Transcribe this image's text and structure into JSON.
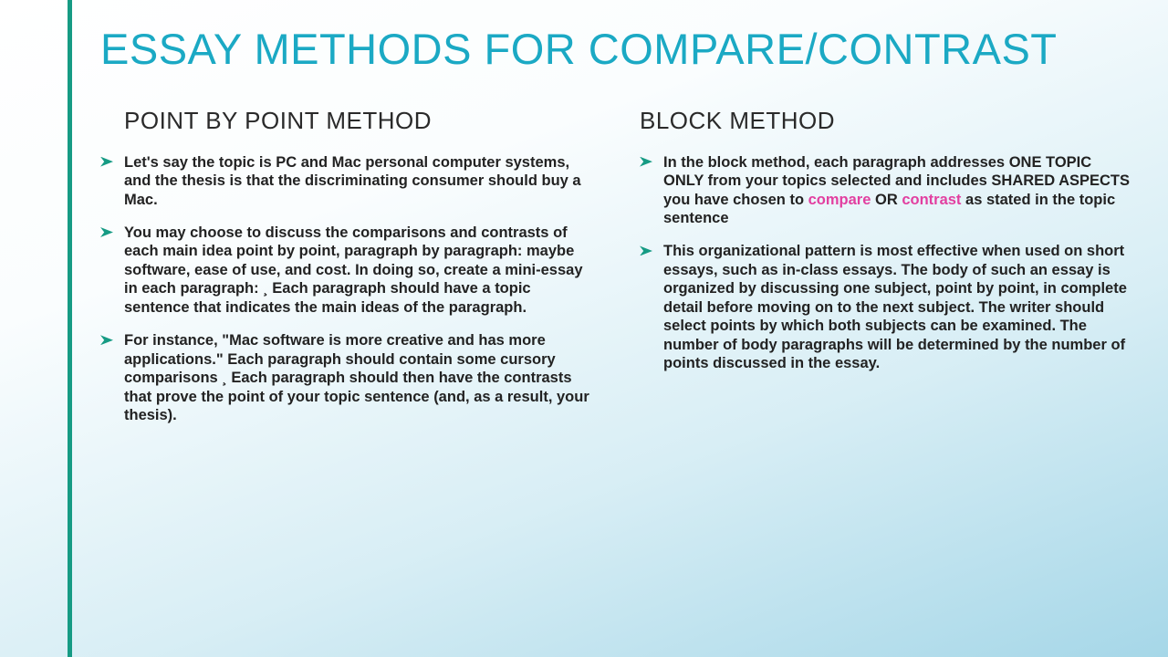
{
  "colors": {
    "accent_bar": "#169b84",
    "title": "#1ba9c4",
    "highlight": "#e23fa0",
    "body_text": "#222222",
    "bg_gradient": [
      "#ffffff",
      "#fafdfe",
      "#d8eef5",
      "#a6d7e8"
    ]
  },
  "typography": {
    "title_size_pt": 36,
    "heading_size_pt": 20,
    "body_size_pt": 12.5,
    "family": "Century Gothic"
  },
  "title": "ESSAY METHODS FOR COMPARE/CONTRAST",
  "left": {
    "heading": "POINT BY POINT METHOD",
    "bullets": [
      "Let's say the topic is PC and Mac personal computer systems, and the thesis is that the discriminating consumer should buy a Mac.",
      "You may choose to discuss the comparisons and contrasts of each main idea point by point, paragraph by paragraph: maybe software, ease of use, and cost. In doing so, create a mini-essay in each paragraph: ¸ Each paragraph should have a topic sentence that indicates the main ideas of the paragraph.",
      "For instance, \"Mac software is more creative and has more applications.\" Each paragraph should contain some cursory comparisons ¸ Each paragraph should then have the contrasts that prove the point of your topic sentence (and, as a result, your thesis)."
    ]
  },
  "right": {
    "heading": "BLOCK METHOD",
    "bullet1_pre": "In the block method, each paragraph addresses ONE TOPIC ONLY from your topics selected and includes SHARED ASPECTS you have chosen to ",
    "bullet1_hl1": "compare",
    "bullet1_mid": " OR ",
    "bullet1_hl2": "contrast",
    "bullet1_post": " as stated in the topic sentence",
    "bullet2": "This organizational pattern is most effective when used on short essays, such as in-class essays. The body of such an essay is organized by discussing one subject, point by point, in complete detail before moving on to the next subject. The writer should select points by which both subjects can be examined. The number of body paragraphs will be determined by the number of points discussed in the essay."
  }
}
